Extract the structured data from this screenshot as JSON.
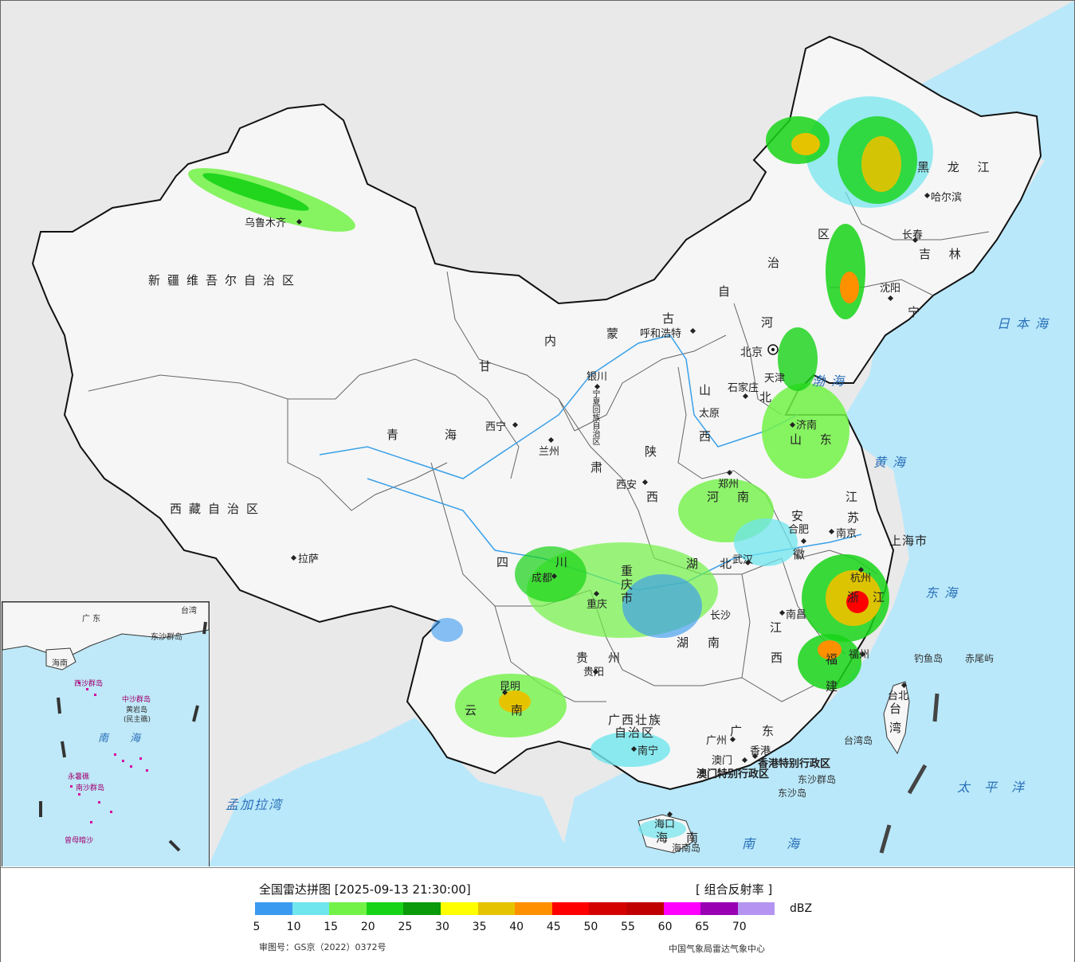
{
  "legend": {
    "title": "全国雷达拼图 [2025-09-13 21:30:00]",
    "product": "[ 组合反射率 ]",
    "unit": "dBZ",
    "approval": "审图号：GS京（2022）0372号",
    "source": "中国气象局雷达气象中心",
    "ticks": [
      "5",
      "10",
      "15",
      "20",
      "25",
      "30",
      "35",
      "40",
      "45",
      "50",
      "55",
      "60",
      "65",
      "70"
    ],
    "colors": [
      "#3a9af0",
      "#6fe6ee",
      "#72f247",
      "#17d317",
      "#0a9a0a",
      "#ffff00",
      "#e6c300",
      "#ff9000",
      "#ff0000",
      "#d40000",
      "#c00000",
      "#ff00ff",
      "#9900b4",
      "#b494f0"
    ]
  },
  "regions": {
    "xinjiang": "新疆维吾尔自治区",
    "xizang": "西藏自治区",
    "qinghai_1": "青",
    "qinghai_2": "海",
    "gansu": "甘",
    "neimenggu_1": "内",
    "neimenggu_2": "蒙",
    "neimenggu_3": "古",
    "neimenggu_4": "自",
    "neimenggu_5": "治",
    "neimenggu_6": "区",
    "heilongjiang": "黑 龙 江",
    "jilin": "吉 林",
    "liaoning": "宁",
    "hebei_1": "河",
    "hebei_2": "北",
    "shanxi_1": "山",
    "shanxi_2": "西",
    "shaanxi_1": "陕",
    "shaanxi_2": "西",
    "shandong": "山 东",
    "henan_1": "河",
    "henan_2": "南",
    "jiangsu_1": "江",
    "jiangsu_2": "苏",
    "anhui_1": "安",
    "anhui_2": "徽",
    "hubei_1": "湖",
    "hubei_2": "北",
    "hunan_1": "湖",
    "hunan_2": "南",
    "sichuan_1": "四",
    "sichuan_2": "川",
    "chongqing": "重庆市",
    "guizhou_1": "贵",
    "guizhou_2": "州",
    "yunnan_1": "云",
    "yunnan_2": "南",
    "guangxi_1": "广西壮族",
    "guangxi_2": "自治区",
    "guangdong_1": "广",
    "guangdong_2": "东",
    "jiangxi_1": "江",
    "jiangxi_2": "西",
    "zhejiang_1": "浙",
    "zhejiang_2": "江",
    "fujian_1": "福",
    "fujian_2": "建",
    "taiwan_1": "台",
    "taiwan_2": "湾",
    "hainan_1": "海",
    "hainan_2": "南",
    "ningxia": "宁夏回族自治区",
    "gansu_2": "肃",
    "shanghai": "上海市",
    "tianjin": "天津",
    "beijing": "北京",
    "xianggang": "香港特别行政区",
    "aomen": "澳门特别行政区"
  },
  "cities": [
    {
      "id": "urumqi",
      "name": "乌鲁木齐"
    },
    {
      "id": "lhasa",
      "name": "拉萨"
    },
    {
      "id": "xining",
      "name": "西宁"
    },
    {
      "id": "lanzhou",
      "name": "兰州"
    },
    {
      "id": "yinchuan",
      "name": "银川"
    },
    {
      "id": "hohhot",
      "name": "呼和浩特"
    },
    {
      "id": "harbin",
      "name": "哈尔滨"
    },
    {
      "id": "changchun",
      "name": "长春"
    },
    {
      "id": "shenyang",
      "name": "沈阳"
    },
    {
      "id": "shijiazhuang",
      "name": "石家庄"
    },
    {
      "id": "taiyuan",
      "name": "太原"
    },
    {
      "id": "jinan",
      "name": "济南"
    },
    {
      "id": "zhengzhou",
      "name": "郑州"
    },
    {
      "id": "xian",
      "name": "西安"
    },
    {
      "id": "hefei",
      "name": "合肥"
    },
    {
      "id": "nanjing",
      "name": "南京"
    },
    {
      "id": "wuhan",
      "name": "武汉"
    },
    {
      "id": "chengdu",
      "name": "成都"
    },
    {
      "id": "chongqing_c",
      "name": "重庆"
    },
    {
      "id": "hangzhou",
      "name": "杭州"
    },
    {
      "id": "changsha",
      "name": "长沙"
    },
    {
      "id": "nanchang",
      "name": "南昌"
    },
    {
      "id": "guiyang",
      "name": "贵阳"
    },
    {
      "id": "kunming",
      "name": "昆明"
    },
    {
      "id": "fuzhou",
      "name": "福州"
    },
    {
      "id": "nanning",
      "name": "南宁"
    },
    {
      "id": "guangzhou",
      "name": "广州"
    },
    {
      "id": "macau",
      "name": "澳门"
    },
    {
      "id": "hongkong",
      "name": "香港"
    },
    {
      "id": "haikou",
      "name": "海口"
    },
    {
      "id": "taipei",
      "name": "台北"
    }
  ],
  "seas": {
    "japan": "日本海",
    "bohai": "渤海",
    "yellow": "黄海",
    "east": "东海",
    "south": "南海",
    "pacific": "太平洋",
    "bengal": "孟加拉湾"
  },
  "islands": {
    "diaoyu": "钓鱼岛",
    "chiwei": "赤尾屿",
    "dongsha_qundao": "东沙群岛",
    "dongsha_dao": "东沙岛",
    "taiwan_dao": "台湾岛",
    "hainan_dao": "海南岛"
  },
  "inset": {
    "south_sea_1": "南",
    "south_sea_2": "海",
    "zhongsha": "中沙群岛",
    "huangyan": "黄岩岛",
    "huangyan_note": "(民主礁)",
    "yongshu": "永暑礁",
    "nansha": "南沙群岛",
    "zengmu": "曾母暗沙",
    "xisha": "西沙群岛",
    "guangdong": "广 东",
    "hainan": "海南",
    "taiwan": "台湾",
    "dongsha": "东沙群岛"
  }
}
